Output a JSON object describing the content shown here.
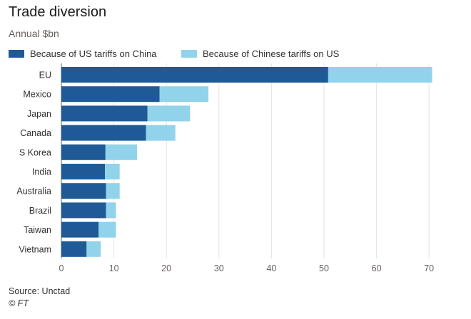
{
  "header": {
    "title": "Trade diversion",
    "subtitle": "Annual $bn"
  },
  "legend": [
    {
      "label": "Because of US tariffs on China",
      "color": "#1f5a96"
    },
    {
      "label": "Because of Chinese tariffs on US",
      "color": "#91d3ea"
    }
  ],
  "footer": {
    "source": "Source: Unctad",
    "credit": "© FT"
  },
  "colors": {
    "us_tariffs": "#1f5a96",
    "chinese_tariffs": "#91d3ea",
    "grid": "#e6e3e0",
    "axis": "#66605c"
  },
  "chart_data": {
    "type": "bar",
    "orientation": "horizontal",
    "stacked": true,
    "title": "Trade diversion",
    "subtitle": "Annual $bn",
    "categories": [
      "EU",
      "Mexico",
      "Japan",
      "Canada",
      "S Korea",
      "India",
      "Australia",
      "Brazil",
      "Taiwan",
      "Vietnam"
    ],
    "series": [
      {
        "name": "Because of US tariffs on China",
        "values": [
          50.8,
          18.7,
          16.4,
          16.1,
          8.4,
          8.3,
          8.5,
          8.5,
          7.1,
          4.8
        ]
      },
      {
        "name": "Because of Chinese tariffs on US",
        "values": [
          19.8,
          9.3,
          8.1,
          5.6,
          6.0,
          2.8,
          2.6,
          1.9,
          3.3,
          2.7
        ]
      }
    ],
    "xlim": [
      0,
      70
    ],
    "xticks": [
      "0",
      "10",
      "20",
      "30",
      "40",
      "50",
      "60",
      "70"
    ],
    "grid": true,
    "legend_position": "top"
  }
}
